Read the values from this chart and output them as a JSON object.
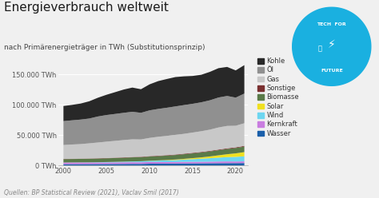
{
  "title": "Energieverbrauch weltweit",
  "subtitle": "nach Primärenergieträger in TWh (Substitutionsprinzip)",
  "source": "Quellen: BP Statistical Review (2021), Vaclav Smil (2017)",
  "years": [
    2000,
    2001,
    2002,
    2003,
    2004,
    2005,
    2006,
    2007,
    2008,
    2009,
    2010,
    2011,
    2012,
    2013,
    2014,
    2015,
    2016,
    2017,
    2018,
    2019,
    2020,
    2021
  ],
  "series": {
    "Wasser": [
      2600,
      2630,
      2660,
      2710,
      2770,
      2830,
      2920,
      2970,
      3080,
      3060,
      3370,
      3490,
      3580,
      3700,
      3840,
      3900,
      4010,
      4130,
      4240,
      4310,
      4360,
      4450
    ],
    "Kernkraft": [
      2590,
      2690,
      2710,
      2640,
      2620,
      2620,
      2630,
      2700,
      2750,
      2700,
      2790,
      2600,
      2460,
      2490,
      2540,
      2570,
      2600,
      2640,
      2790,
      2840,
      2710,
      2800
    ],
    "Wind": [
      180,
      220,
      270,
      360,
      490,
      650,
      840,
      1070,
      1320,
      1600,
      1940,
      2370,
      2800,
      3130,
      3750,
      4400,
      5000,
      5700,
      6400,
      7100,
      7600,
      8300
    ],
    "Solar": [
      10,
      15,
      18,
      22,
      27,
      35,
      50,
      70,
      100,
      140,
      220,
      380,
      620,
      930,
      1250,
      1700,
      2200,
      2900,
      3800,
      4800,
      5800,
      7000
    ],
    "Biomasse": [
      5500,
      5600,
      5700,
      5850,
      6000,
      6150,
      6300,
      6450,
      6600,
      6700,
      6900,
      7100,
      7300,
      7500,
      7700,
      7900,
      8100,
      8300,
      8500,
      8700,
      8900,
      9100
    ],
    "Sonstige": [
      400,
      420,
      440,
      460,
      490,
      520,
      560,
      600,
      640,
      660,
      700,
      740,
      780,
      820,
      860,
      900,
      940,
      980,
      1020,
      1060,
      1100,
      1150
    ],
    "Gas": [
      23000,
      23500,
      24000,
      25000,
      26000,
      27000,
      27800,
      28600,
      29200,
      28600,
      30100,
      31200,
      31800,
      32500,
      32800,
      33500,
      34200,
      35000,
      36500,
      37000,
      35600,
      37500
    ],
    "Öl": [
      39500,
      40000,
      40500,
      41000,
      43000,
      44000,
      44500,
      45000,
      45500,
      44000,
      45500,
      46000,
      46500,
      47000,
      47500,
      47500,
      47800,
      48500,
      49500,
      49500,
      46500,
      49000
    ],
    "Kohle": [
      25000,
      25500,
      26500,
      28500,
      31000,
      33500,
      36000,
      38500,
      40000,
      39000,
      43000,
      46000,
      47500,
      48500,
      47500,
      46000,
      45500,
      47000,
      48500,
      48000,
      45000,
      47000
    ]
  },
  "colors": {
    "Wasser": "#1a5faa",
    "Kernkraft": "#c97de0",
    "Wind": "#6dd6f0",
    "Solar": "#f0e020",
    "Biomasse": "#5a7a48",
    "Sonstige": "#7a3030",
    "Gas": "#c8c8c8",
    "Öl": "#909090",
    "Kohle": "#282828"
  },
  "legend_order": [
    "Kohle",
    "Öl",
    "Gas",
    "Sonstige",
    "Biomasse",
    "Solar",
    "Wind",
    "Kernkraft",
    "Wasser"
  ],
  "stack_order": [
    "Wasser",
    "Kernkraft",
    "Wind",
    "Solar",
    "Biomasse",
    "Sonstige",
    "Gas",
    "Öl",
    "Kohle"
  ],
  "ylim": [
    0,
    180000
  ],
  "yticks": [
    0,
    50000,
    100000,
    150000
  ],
  "ytick_labels": [
    "0 TWh",
    "50.000 TWh",
    "100.000 TWh",
    "150.000 TWh"
  ],
  "xlim": [
    1999.5,
    2021.5
  ],
  "xticks": [
    2000,
    2005,
    2010,
    2015,
    2020
  ],
  "bg_color": "#f0f0f0",
  "plot_bg_color": "#f0f0f0",
  "title_fontsize": 11,
  "subtitle_fontsize": 6.5,
  "source_fontsize": 5.5,
  "tick_fontsize": 6,
  "legend_fontsize": 6,
  "logo_color": "#1ab0e0"
}
